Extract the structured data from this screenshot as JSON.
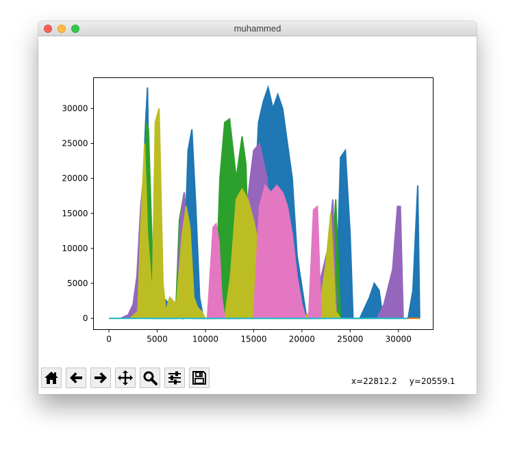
{
  "window": {
    "title": "muhammed"
  },
  "toolbar": {
    "buttons": [
      {
        "icon": "home-icon"
      },
      {
        "icon": "back-arrow-icon"
      },
      {
        "icon": "forward-arrow-icon"
      },
      {
        "icon": "pan-move-icon"
      },
      {
        "icon": "zoom-magnifier-icon"
      },
      {
        "icon": "configure-subplots-icon"
      },
      {
        "icon": "save-figure-icon"
      }
    ],
    "x_readout": "x=22812.2",
    "y_readout": "y=20559.1"
  },
  "chart_data": {
    "type": "line",
    "title": "",
    "xlabel": "",
    "ylabel": "",
    "xlim": [
      -1600,
      33600
    ],
    "ylim": [
      -1600,
      34400
    ],
    "xticks": [
      0,
      5000,
      10000,
      15000,
      20000,
      25000,
      30000
    ],
    "yticks": [
      0,
      5000,
      10000,
      15000,
      20000,
      25000,
      30000
    ],
    "grid": false,
    "legend": "none",
    "series": [
      {
        "color": "#1f77b4",
        "x": [
          3000,
          3400,
          3800,
          4000,
          4300,
          7600,
          8200,
          8600,
          9000,
          9400,
          9800,
          14500,
          15500,
          16000,
          16500,
          17000,
          17500,
          18000,
          18500,
          19000,
          19500,
          20500,
          23500,
          24000,
          24500,
          25000,
          25300,
          26000,
          27000,
          27500,
          28000,
          28400,
          31000,
          31500,
          32000,
          32200
        ],
        "y": [
          0,
          14000,
          28000,
          33000,
          5000,
          0,
          24000,
          27000,
          16000,
          3000,
          0,
          0,
          28000,
          31000,
          33000,
          30000,
          32000,
          30000,
          25000,
          20000,
          9000,
          0,
          0,
          23000,
          24000,
          12000,
          0,
          0,
          3000,
          5000,
          4000,
          0,
          0,
          4000,
          19000,
          0
        ]
      },
      {
        "color": "#ff7f0e",
        "x": [
          0,
          2000,
          31000,
          32200
        ],
        "y": [
          0,
          0,
          0,
          0
        ]
      },
      {
        "color": "#2ca02c",
        "x": [
          3000,
          3500,
          3900,
          4100,
          4700,
          6900,
          7300,
          7800,
          8100,
          8400,
          8800,
          11000,
          11500,
          12000,
          12500,
          13200,
          13800,
          14200,
          14600,
          22500,
          23000,
          23500,
          24000
        ],
        "y": [
          0,
          12000,
          28000,
          27000,
          0,
          0,
          14000,
          18000,
          10000,
          3000,
          0,
          0,
          20000,
          28000,
          28500,
          20000,
          26000,
          22000,
          0,
          0,
          5000,
          17000,
          0
        ]
      },
      {
        "color": "#9467bd",
        "x": [
          1200,
          2000,
          2500,
          2900,
          3300,
          3700,
          4300,
          7000,
          7400,
          7800,
          8200,
          8600,
          13500,
          14200,
          15000,
          15600,
          16400,
          17000,
          21500,
          22000,
          22700,
          23200,
          23600,
          27800,
          28500,
          29400,
          29900,
          30200,
          30500
        ],
        "y": [
          0,
          500,
          2000,
          6000,
          16000,
          22000,
          0,
          0,
          14000,
          18000,
          12000,
          0,
          0,
          15000,
          24000,
          25000,
          20000,
          0,
          0,
          6000,
          10000,
          17000,
          0,
          0,
          2000,
          7000,
          16000,
          16000,
          0
        ]
      },
      {
        "color": "#bcbd22",
        "x": [
          2200,
          3000,
          3300,
          3700,
          4000,
          4500,
          4800,
          5200,
          5600,
          5900,
          6300,
          7000,
          7600,
          8000,
          8400,
          8800,
          9200,
          9600,
          10000,
          12000,
          12600,
          13200,
          13800,
          14400,
          15000,
          15600,
          16200,
          16600,
          17000,
          20000,
          21500,
          22000,
          22500,
          23000,
          23500,
          24000
        ],
        "y": [
          0,
          1000,
          13000,
          25000,
          12000,
          3000,
          28000,
          30000,
          5000,
          1000,
          3000,
          2000,
          12000,
          16000,
          13000,
          3000,
          1500,
          1000,
          0,
          0,
          6000,
          17000,
          18500,
          17000,
          14000,
          10000,
          6000,
          2000,
          0,
          0,
          1500,
          3000,
          8000,
          15000,
          1000,
          0
        ]
      },
      {
        "color": "#e377c2",
        "x": [
          10200,
          10800,
          11100,
          11400,
          11700,
          12000,
          15000,
          15600,
          16200,
          16800,
          17400,
          18000,
          18500,
          19000,
          19500,
          20000,
          20400,
          20700,
          21200,
          21600,
          22000
        ],
        "y": [
          0,
          13000,
          13500,
          11000,
          3000,
          0,
          0,
          16000,
          19000,
          18000,
          19000,
          18000,
          16000,
          12000,
          6000,
          2000,
          0,
          0,
          15500,
          16000,
          0
        ]
      },
      {
        "color": "#17becf",
        "x": [
          0,
          31000
        ],
        "y": [
          0,
          0
        ]
      }
    ]
  }
}
